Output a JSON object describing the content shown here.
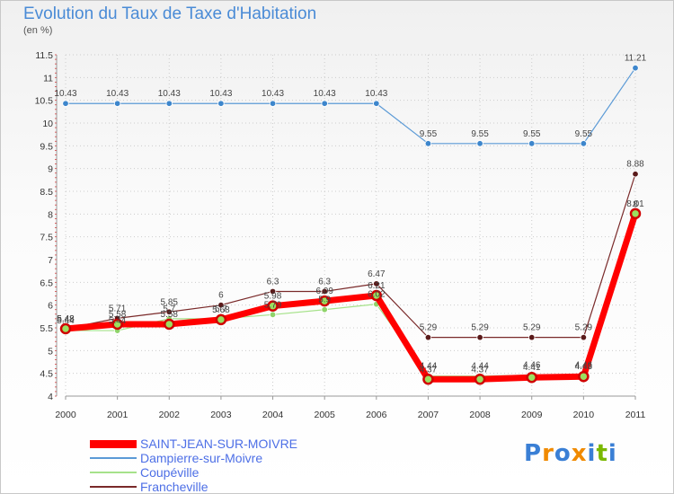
{
  "chart_data": {
    "type": "line",
    "title": "Evolution du Taux de Taxe d'Habitation",
    "unit_label": "(en %)",
    "xlabel": "",
    "ylabel": "",
    "ylim": [
      4,
      11.5
    ],
    "y_ticks": [
      "4",
      "4.5",
      "5",
      "5.5",
      "6",
      "6.5",
      "7",
      "7.5",
      "8",
      "8.5",
      "9",
      "9.5",
      "10",
      "10.5",
      "11",
      "11.5"
    ],
    "categories": [
      "2000",
      "2001",
      "2002",
      "2003",
      "2004",
      "2005",
      "2006",
      "2007",
      "2008",
      "2009",
      "2010",
      "2011"
    ],
    "series": [
      {
        "name": "Francheville",
        "color": "#7a2a2a",
        "marker": "#5a1a1a",
        "values": [
          5.48,
          5.71,
          5.85,
          6.0,
          6.3,
          6.3,
          6.47,
          5.29,
          5.29,
          5.29,
          5.29,
          8.88
        ]
      },
      {
        "name": "Coupéville",
        "color": "#a6e28a",
        "marker": "#8fd36a",
        "values": [
          5.44,
          5.44,
          5.7,
          5.7,
          5.79,
          5.9,
          6.02,
          4.44,
          4.44,
          4.46,
          4.46,
          8.0
        ]
      },
      {
        "name": "SAINT-JEAN-SUR-MOIVRE",
        "color": "#ff0000",
        "marker": "#d40000",
        "values": [
          5.48,
          5.58,
          5.58,
          5.68,
          5.98,
          6.09,
          6.21,
          4.37,
          4.37,
          4.41,
          4.43,
          8.01
        ]
      },
      {
        "name": "Dampierre-sur-Moivre",
        "color": "#5b9ad6",
        "marker": "#3d86cc",
        "values": [
          10.43,
          10.43,
          10.43,
          10.43,
          10.43,
          10.43,
          10.43,
          9.55,
          9.55,
          9.55,
          9.55,
          11.21
        ]
      }
    ],
    "data_labels": {
      "Francheville": [
        "5.48",
        "5.71",
        "5.85",
        "6",
        "6.3",
        "6.3",
        "6.47",
        "5.29",
        "5.29",
        "5.29",
        "5.29",
        "8.88"
      ],
      "Coupéville": [
        "5.44",
        "5.44",
        "5.7",
        "5.7",
        "5.79",
        "5.9",
        "6.02",
        "4.44",
        "4.44",
        "4.46",
        "4.46",
        "8"
      ],
      "SAINT-JEAN-SUR-MOIVRE": [
        "5.48",
        "5.58",
        "5.58",
        "5.68",
        "5.98",
        "6.09",
        "6.21",
        "4.37",
        "4.37",
        "4.41",
        "4.43",
        "8.01"
      ],
      "Dampierre-sur-Moivre": [
        "10.43",
        "10.43",
        "10.43",
        "10.43",
        "10.43",
        "10.43",
        "10.43",
        "9.55",
        "9.55",
        "9.55",
        "9.55",
        "11.21"
      ]
    },
    "legend": [
      {
        "name": "SAINT-JEAN-SUR-MOIVRE",
        "color": "#ff0000"
      },
      {
        "name": "Dampierre-sur-Moivre",
        "color": "#5b9ad6"
      },
      {
        "name": "Coupéville",
        "color": "#a6e28a"
      },
      {
        "name": "Francheville",
        "color": "#7a2a2a"
      }
    ]
  },
  "branding": {
    "logo_letters": [
      "P",
      "r",
      "o",
      "x",
      "i",
      "t",
      "i"
    ],
    "logo_colors": [
      "#3a7fd5",
      "#f08a00",
      "#3a7fd5",
      "#f08a00",
      "#3a7fd5",
      "#7ab800",
      "#3a7fd5"
    ]
  }
}
